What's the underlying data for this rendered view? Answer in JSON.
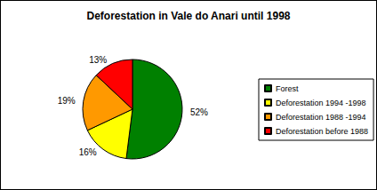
{
  "chart_data": {
    "type": "pie",
    "title": "Deforestation in Vale do Anari until 1998",
    "categories": [
      "Forest",
      "Deforestation 1994 -1998",
      "Deforestation 1988 -1994",
      "Deforestation before 1988"
    ],
    "values": [
      52,
      16,
      19,
      13
    ],
    "value_labels": [
      "52%",
      "16%",
      "19%",
      "13%"
    ],
    "colors": [
      "#008000",
      "#ffff00",
      "#ff9900",
      "#ff0000"
    ],
    "data_labels": true,
    "legend": "right"
  }
}
